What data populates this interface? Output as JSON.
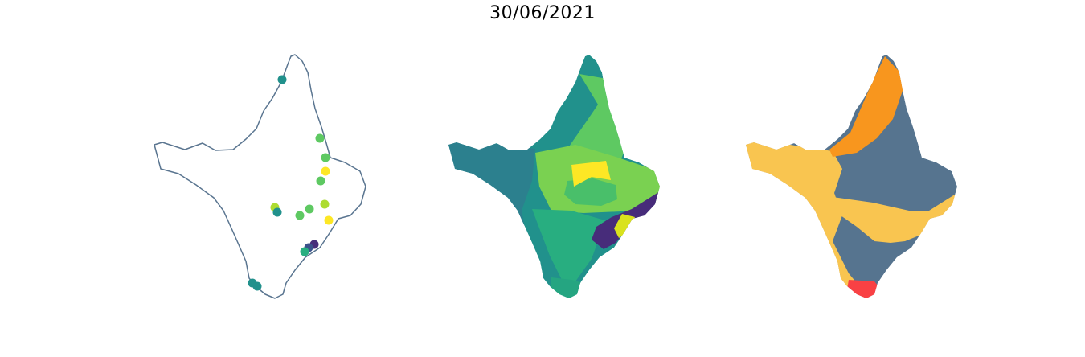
{
  "title": "30/06/2021",
  "colors": {
    "outline": "#5a7590",
    "viridis": [
      "#440154",
      "#472c7a",
      "#3b528b",
      "#2c728e",
      "#21918c",
      "#28ae80",
      "#5ec962",
      "#addc30",
      "#fde725"
    ],
    "categories": {
      "gray_blue": "#56748f",
      "light_orange": "#f9c550",
      "orange": "#f8961e",
      "red": "#f94144"
    }
  },
  "panels": [
    {
      "name": "station-points-map",
      "points": [
        {
          "name": "p1",
          "color_index": 4
        },
        {
          "name": "p2",
          "color_index": 6
        },
        {
          "name": "p3",
          "color_index": 6
        },
        {
          "name": "p4",
          "color_index": 8
        },
        {
          "name": "p5",
          "color_index": 6
        },
        {
          "name": "p6",
          "color_index": 7
        },
        {
          "name": "p7",
          "color_index": 4
        },
        {
          "name": "p8",
          "color_index": 6
        },
        {
          "name": "p9",
          "color_index": 6
        },
        {
          "name": "p10",
          "color_index": 7
        },
        {
          "name": "p11",
          "color_index": 8
        },
        {
          "name": "p12",
          "color_index": 1
        },
        {
          "name": "p13",
          "color_index": 2
        },
        {
          "name": "p14",
          "color_index": 5
        },
        {
          "name": "p15",
          "color_index": 4
        },
        {
          "name": "p16",
          "color_index": 4
        }
      ]
    },
    {
      "name": "interpolated-regions-map"
    },
    {
      "name": "category-regions-map"
    }
  ]
}
